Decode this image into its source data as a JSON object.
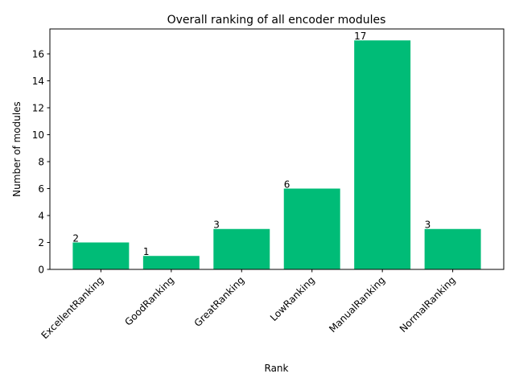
{
  "chart_data": {
    "type": "bar",
    "title": "Overall ranking of all encoder modules",
    "xlabel": "Rank",
    "ylabel": "Number of modules",
    "categories": [
      "ExcellentRanking",
      "GoodRanking",
      "GreatRanking",
      "LowRanking",
      "ManualRanking",
      "NormalRanking"
    ],
    "values": [
      2,
      1,
      3,
      6,
      17,
      3
    ],
    "ylim": [
      0,
      17.85
    ],
    "yticks": [
      0,
      2,
      4,
      6,
      8,
      10,
      12,
      14,
      16
    ],
    "bar_color": "#00bc77",
    "grid": false,
    "legend": "none"
  }
}
